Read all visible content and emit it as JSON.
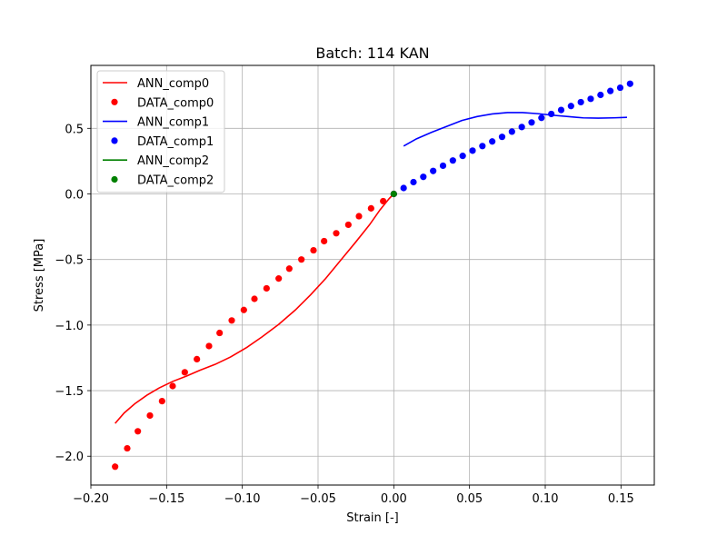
{
  "chart_data": {
    "type": "scatter",
    "title": "Batch: 114 KAN",
    "xlabel": "Strain [-]",
    "ylabel": "Stress [MPa]",
    "xlim": [
      -0.2,
      0.172
    ],
    "ylim": [
      -2.22,
      0.98
    ],
    "xticks": [
      -0.2,
      -0.15,
      -0.1,
      -0.05,
      0.0,
      0.05,
      0.1,
      0.15
    ],
    "xtick_labels": [
      "−0.20",
      "−0.15",
      "−0.10",
      "−0.05",
      "0.00",
      "0.05",
      "0.10",
      "0.15"
    ],
    "yticks": [
      -2.0,
      -1.5,
      -1.0,
      -0.5,
      0.0,
      0.5
    ],
    "ytick_labels": [
      "−2.0",
      "−1.5",
      "−1.0",
      "−0.5",
      "0.0",
      "0.5"
    ],
    "grid": true,
    "legend_position": "top-left",
    "series": [
      {
        "name": "ANN_comp0",
        "kind": "line",
        "color": "#ff0000",
        "points": [
          [
            -0.184,
            -1.75
          ],
          [
            -0.178,
            -1.67
          ],
          [
            -0.171,
            -1.6
          ],
          [
            -0.163,
            -1.535
          ],
          [
            -0.155,
            -1.48
          ],
          [
            -0.146,
            -1.43
          ],
          [
            -0.137,
            -1.39
          ],
          [
            -0.128,
            -1.345
          ],
          [
            -0.118,
            -1.3
          ],
          [
            -0.108,
            -1.245
          ],
          [
            -0.097,
            -1.17
          ],
          [
            -0.087,
            -1.09
          ],
          [
            -0.076,
            -0.995
          ],
          [
            -0.065,
            -0.885
          ],
          [
            -0.055,
            -0.77
          ],
          [
            -0.045,
            -0.645
          ],
          [
            -0.035,
            -0.505
          ],
          [
            -0.025,
            -0.365
          ],
          [
            -0.016,
            -0.235
          ],
          [
            -0.009,
            -0.12
          ],
          [
            -0.003,
            -0.035
          ],
          [
            0.0,
            0.0
          ]
        ]
      },
      {
        "name": "DATA_comp0",
        "kind": "scatter",
        "color": "#ff0000",
        "points": [
          [
            -0.184,
            -2.08
          ],
          [
            -0.176,
            -1.94
          ],
          [
            -0.169,
            -1.81
          ],
          [
            -0.161,
            -1.69
          ],
          [
            -0.153,
            -1.58
          ],
          [
            -0.146,
            -1.465
          ],
          [
            -0.138,
            -1.36
          ],
          [
            -0.13,
            -1.26
          ],
          [
            -0.122,
            -1.16
          ],
          [
            -0.115,
            -1.06
          ],
          [
            -0.107,
            -0.965
          ],
          [
            -0.099,
            -0.885
          ],
          [
            -0.092,
            -0.8
          ],
          [
            -0.084,
            -0.72
          ],
          [
            -0.076,
            -0.645
          ],
          [
            -0.069,
            -0.57
          ],
          [
            -0.061,
            -0.5
          ],
          [
            -0.053,
            -0.43
          ],
          [
            -0.046,
            -0.36
          ],
          [
            -0.038,
            -0.3
          ],
          [
            -0.03,
            -0.235
          ],
          [
            -0.023,
            -0.17
          ],
          [
            -0.015,
            -0.11
          ],
          [
            -0.007,
            -0.055
          ],
          [
            0.0,
            0.0
          ]
        ]
      },
      {
        "name": "ANN_comp1",
        "kind": "line",
        "color": "#0000ff",
        "points": [
          [
            0.0065,
            0.365
          ],
          [
            0.015,
            0.42
          ],
          [
            0.025,
            0.47
          ],
          [
            0.035,
            0.515
          ],
          [
            0.045,
            0.56
          ],
          [
            0.055,
            0.59
          ],
          [
            0.065,
            0.61
          ],
          [
            0.075,
            0.62
          ],
          [
            0.085,
            0.62
          ],
          [
            0.095,
            0.612
          ],
          [
            0.105,
            0.6
          ],
          [
            0.115,
            0.59
          ],
          [
            0.125,
            0.58
          ],
          [
            0.135,
            0.578
          ],
          [
            0.145,
            0.58
          ],
          [
            0.154,
            0.584
          ]
        ]
      },
      {
        "name": "DATA_comp1",
        "kind": "scatter",
        "color": "#0000ff",
        "points": [
          [
            0.0,
            0.0
          ],
          [
            0.0065,
            0.045
          ],
          [
            0.013,
            0.09
          ],
          [
            0.0195,
            0.13
          ],
          [
            0.026,
            0.175
          ],
          [
            0.0325,
            0.215
          ],
          [
            0.039,
            0.255
          ],
          [
            0.0455,
            0.29
          ],
          [
            0.052,
            0.33
          ],
          [
            0.0585,
            0.365
          ],
          [
            0.065,
            0.4
          ],
          [
            0.0715,
            0.435
          ],
          [
            0.078,
            0.475
          ],
          [
            0.0845,
            0.51
          ],
          [
            0.091,
            0.545
          ],
          [
            0.0975,
            0.58
          ],
          [
            0.104,
            0.61
          ],
          [
            0.1105,
            0.64
          ],
          [
            0.117,
            0.67
          ],
          [
            0.1235,
            0.7
          ],
          [
            0.13,
            0.725
          ],
          [
            0.1365,
            0.755
          ],
          [
            0.143,
            0.785
          ],
          [
            0.1495,
            0.81
          ],
          [
            0.156,
            0.84
          ]
        ]
      },
      {
        "name": "ANN_comp2",
        "kind": "line",
        "color": "#008000",
        "points": [
          [
            0.0,
            0.0
          ]
        ]
      },
      {
        "name": "DATA_comp2",
        "kind": "scatter",
        "color": "#008000",
        "points": [
          [
            0.0,
            0.0
          ]
        ]
      }
    ]
  }
}
